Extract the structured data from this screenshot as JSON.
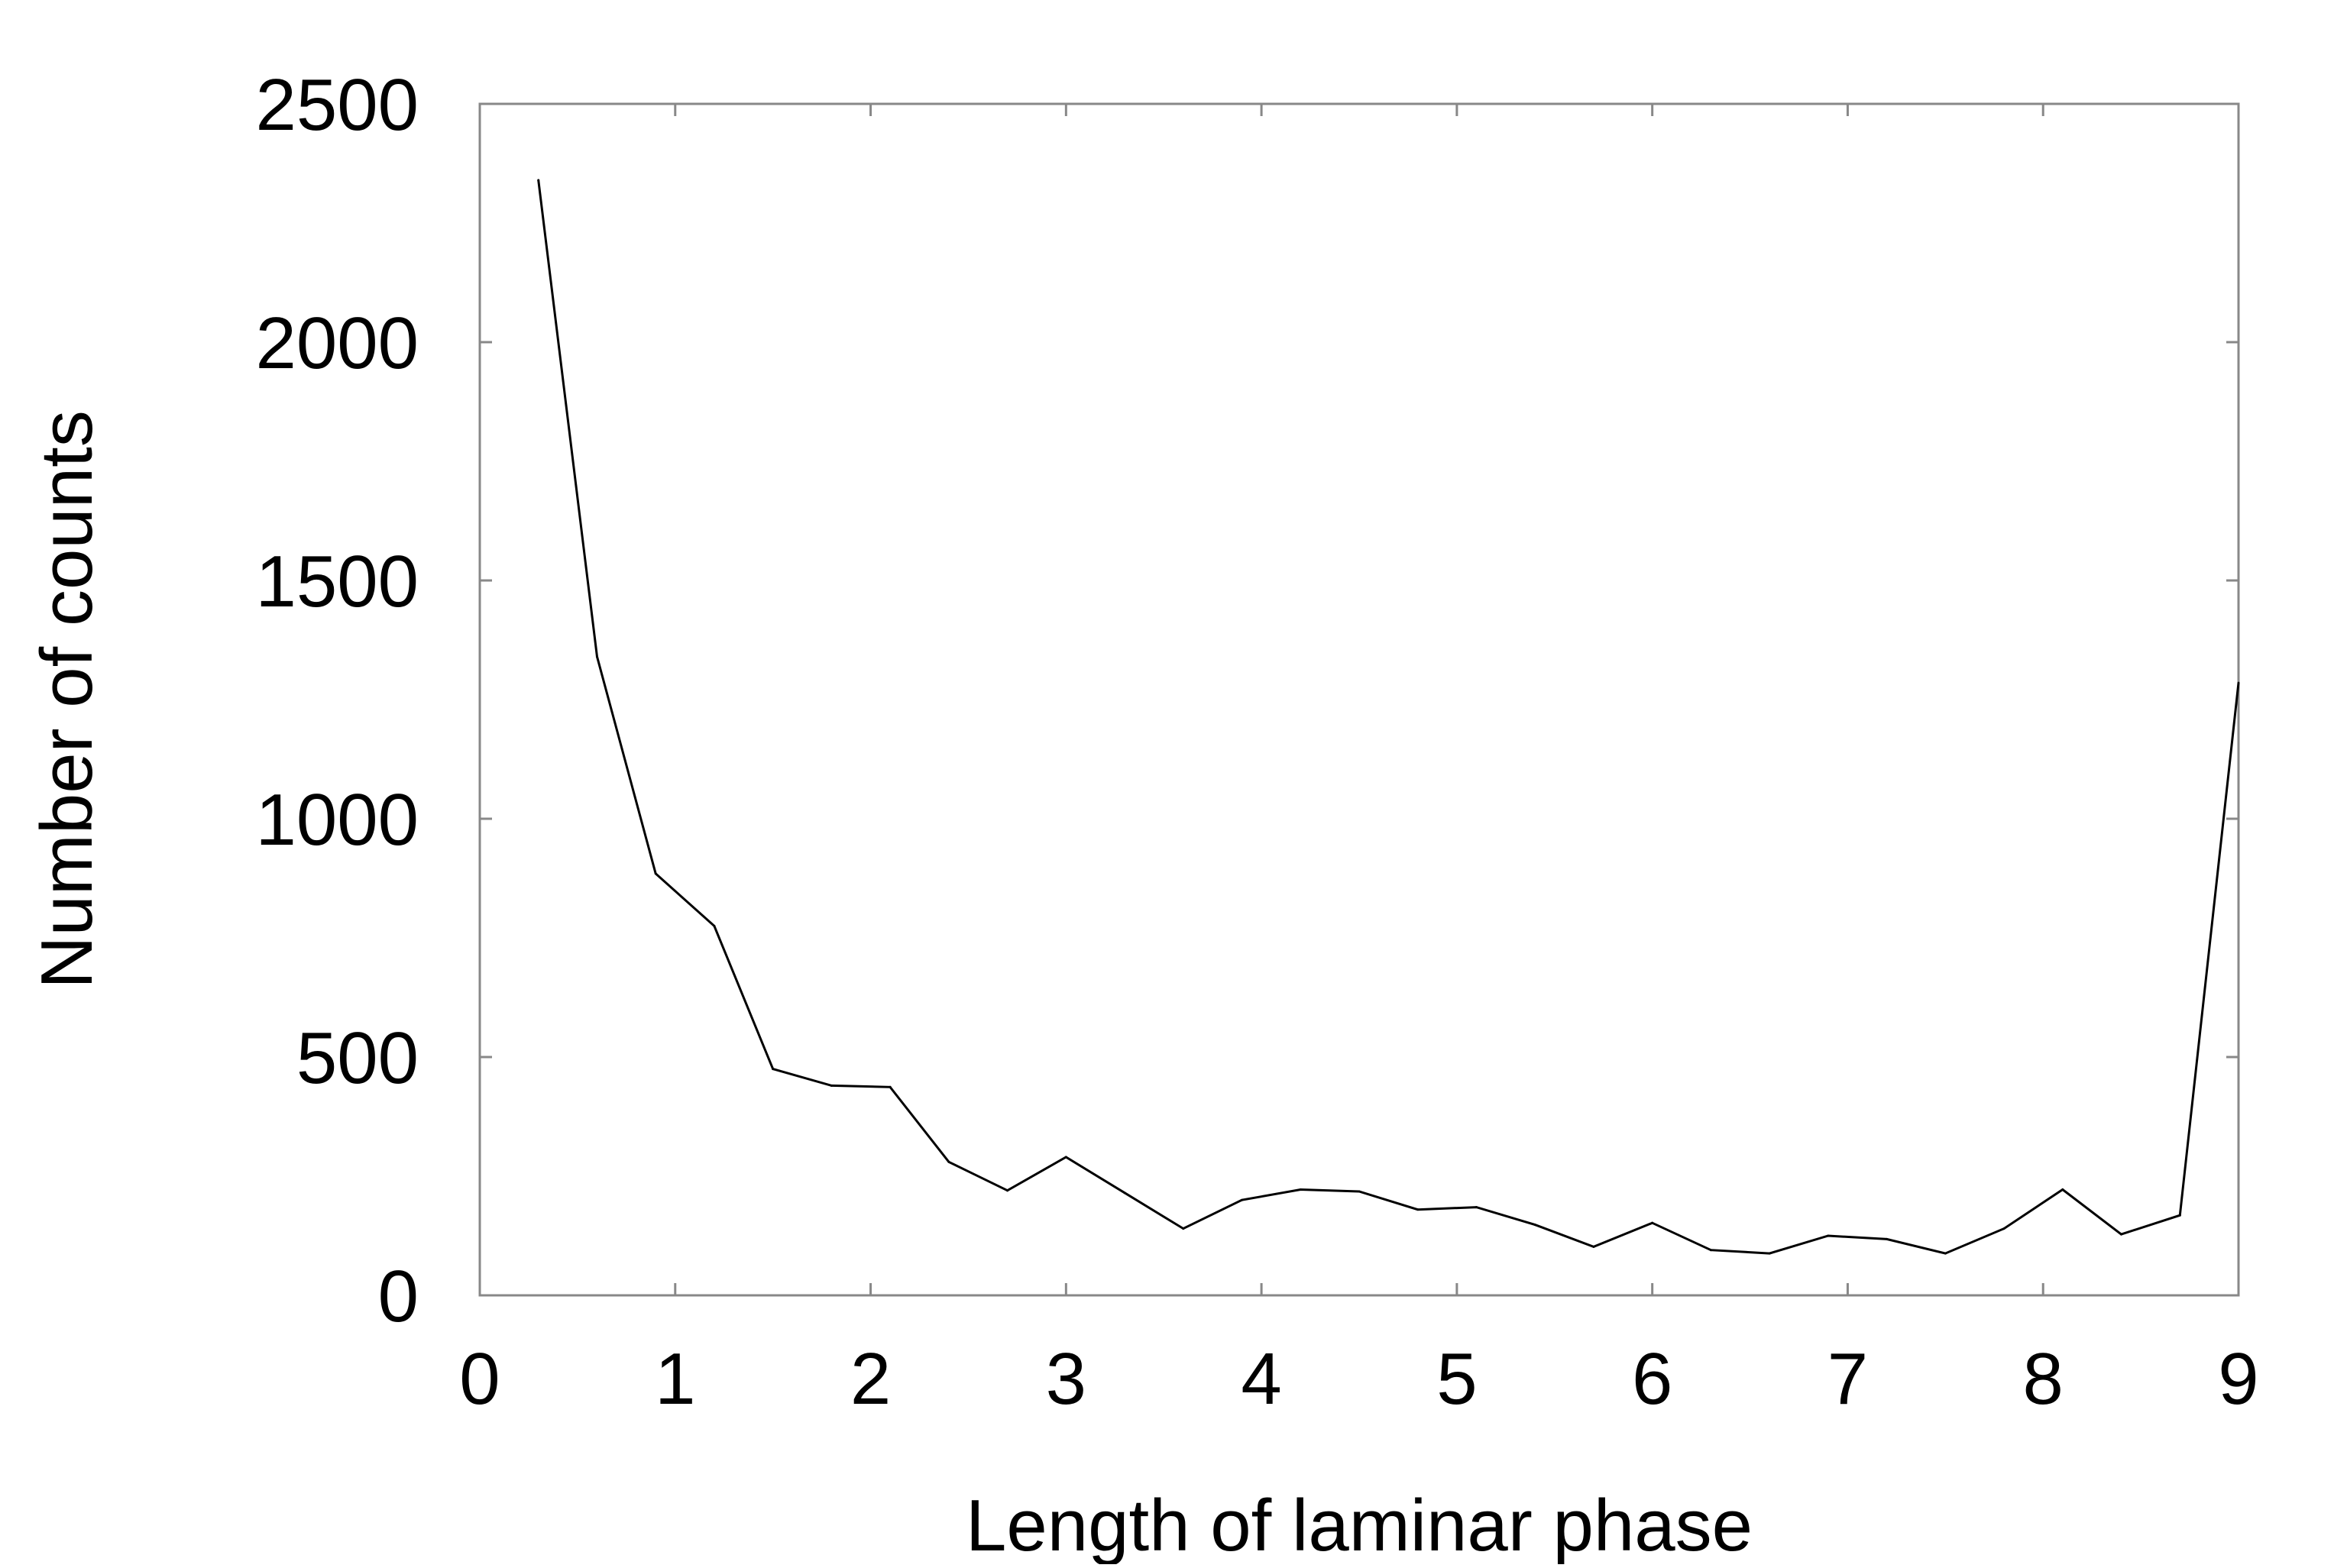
{
  "chart_data": {
    "type": "line",
    "title": "",
    "xlabel": "Length of laminar phase",
    "ylabel": "Number of counts",
    "xlim": [
      0,
      9
    ],
    "ylim": [
      0,
      2500
    ],
    "xticks": [
      "0",
      "1",
      "2",
      "3",
      "4",
      "5",
      "6",
      "7",
      "8",
      "9"
    ],
    "yticks": [
      "0",
      "500",
      "1000",
      "1500",
      "2000",
      "2500"
    ],
    "grid": false,
    "legend": "none",
    "series": [
      {
        "color": "#000000",
        "x": [
          0.3,
          0.6,
          0.9,
          1.2,
          1.5,
          1.8,
          2.1,
          2.4,
          2.7,
          3.0,
          3.3,
          3.6,
          3.9,
          4.2,
          4.5,
          4.8,
          5.1,
          5.4,
          5.7,
          6.0,
          6.3,
          6.6,
          6.9,
          7.2,
          7.5,
          7.8,
          8.1,
          8.4,
          8.7,
          9.0
        ],
        "y": [
          2340,
          1340,
          885,
          775,
          475,
          440,
          437,
          280,
          220,
          290,
          215,
          140,
          200,
          222,
          218,
          180,
          185,
          148,
          102,
          152,
          95,
          88,
          125,
          118,
          88,
          140,
          222,
          128,
          168,
          1285
        ]
      }
    ]
  }
}
